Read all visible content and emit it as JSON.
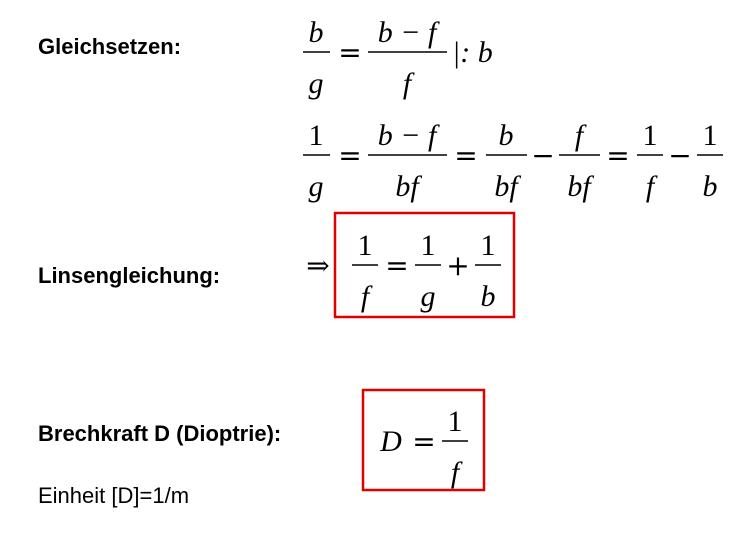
{
  "labels": {
    "gleichsetzen": "Gleichsetzen:",
    "linsengleichung": "Linsengleichung:",
    "brechkraft": "Brechkraft D (Dioptrie):",
    "einheit": "Einheit [D]=1/m"
  },
  "eq1": {
    "lhs_num": "b",
    "lhs_den": "g",
    "eq": "=",
    "rhs_num": "b − f",
    "rhs_den": "f",
    "divider": "|: b"
  },
  "eq2": {
    "t1_num": "1",
    "t1_den": "g",
    "t2_num": "b − f",
    "t2_den": "bf",
    "t3_num": "b",
    "t3_den": "bf",
    "t4_num": "f",
    "t4_den": "bf",
    "t5_num": "1",
    "t5_den": "f",
    "t6_num": "1",
    "t6_den": "b",
    "eq": "=",
    "minus": "−"
  },
  "eq3": {
    "implies": "⇒",
    "lhs_num": "1",
    "lhs_den": "f",
    "eq": "=",
    "t1_num": "1",
    "t1_den": "g",
    "plus": "+",
    "t2_num": "1",
    "t2_den": "b"
  },
  "eq4": {
    "lhs": "D",
    "eq": "=",
    "num": "1",
    "den": "f"
  },
  "colors": {
    "box": "#e00000",
    "text": "#000000"
  }
}
